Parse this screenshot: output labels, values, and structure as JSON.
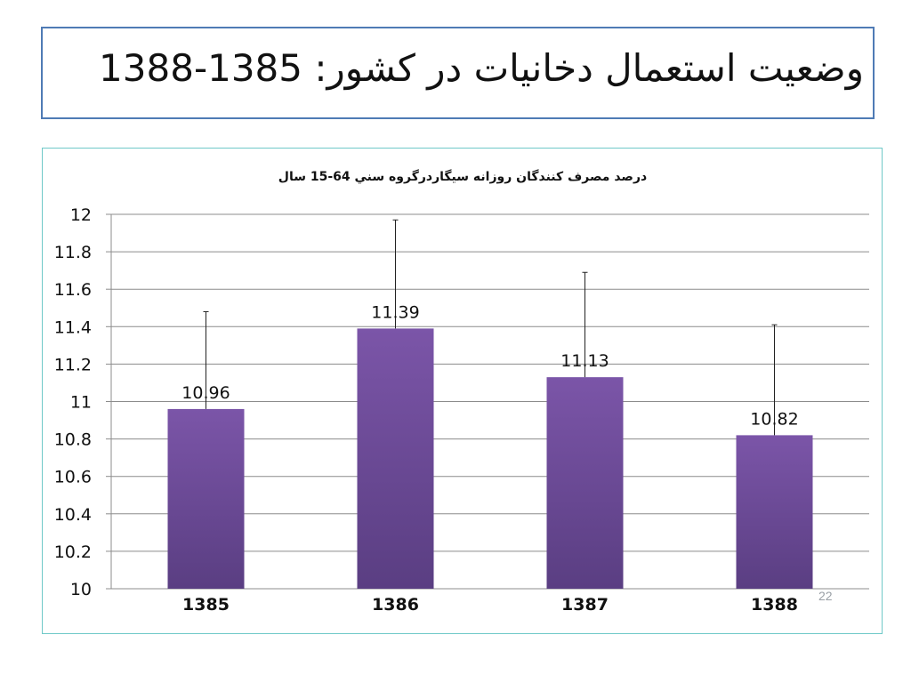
{
  "slide": {
    "title": "وضعیت استعمال دخانیات در کشور: 1385-1388",
    "page_number": "22"
  },
  "colors": {
    "bar_top": "#7b55a8",
    "bar_bottom": "#5a3e82",
    "grid": "#8c8c8c",
    "title_border": "#4f7bb5",
    "chart_border": "#6fc9c8"
  },
  "chart_data": {
    "type": "bar",
    "title": "درصد مصرف کنندگان روزانه سیگاردرگروه سني 64-15 سال",
    "categories": [
      "1385",
      "1386",
      "1387",
      "1388"
    ],
    "values": [
      10.96,
      11.39,
      11.13,
      10.82
    ],
    "data_labels": [
      "10.96",
      "11.39",
      "11.13",
      "10.82"
    ],
    "error_upper": [
      11.48,
      11.97,
      11.69,
      11.41
    ],
    "ylim": [
      10,
      12
    ],
    "yticks": [
      10,
      10.2,
      10.4,
      10.6,
      10.8,
      11,
      11.2,
      11.4,
      11.6,
      11.8,
      12
    ],
    "ytick_labels": [
      "10",
      "10.2",
      "10.4",
      "10.6",
      "10.8",
      "11",
      "11.2",
      "11.4",
      "11.6",
      "11.8",
      "12"
    ],
    "grid": true,
    "legend": "none"
  }
}
